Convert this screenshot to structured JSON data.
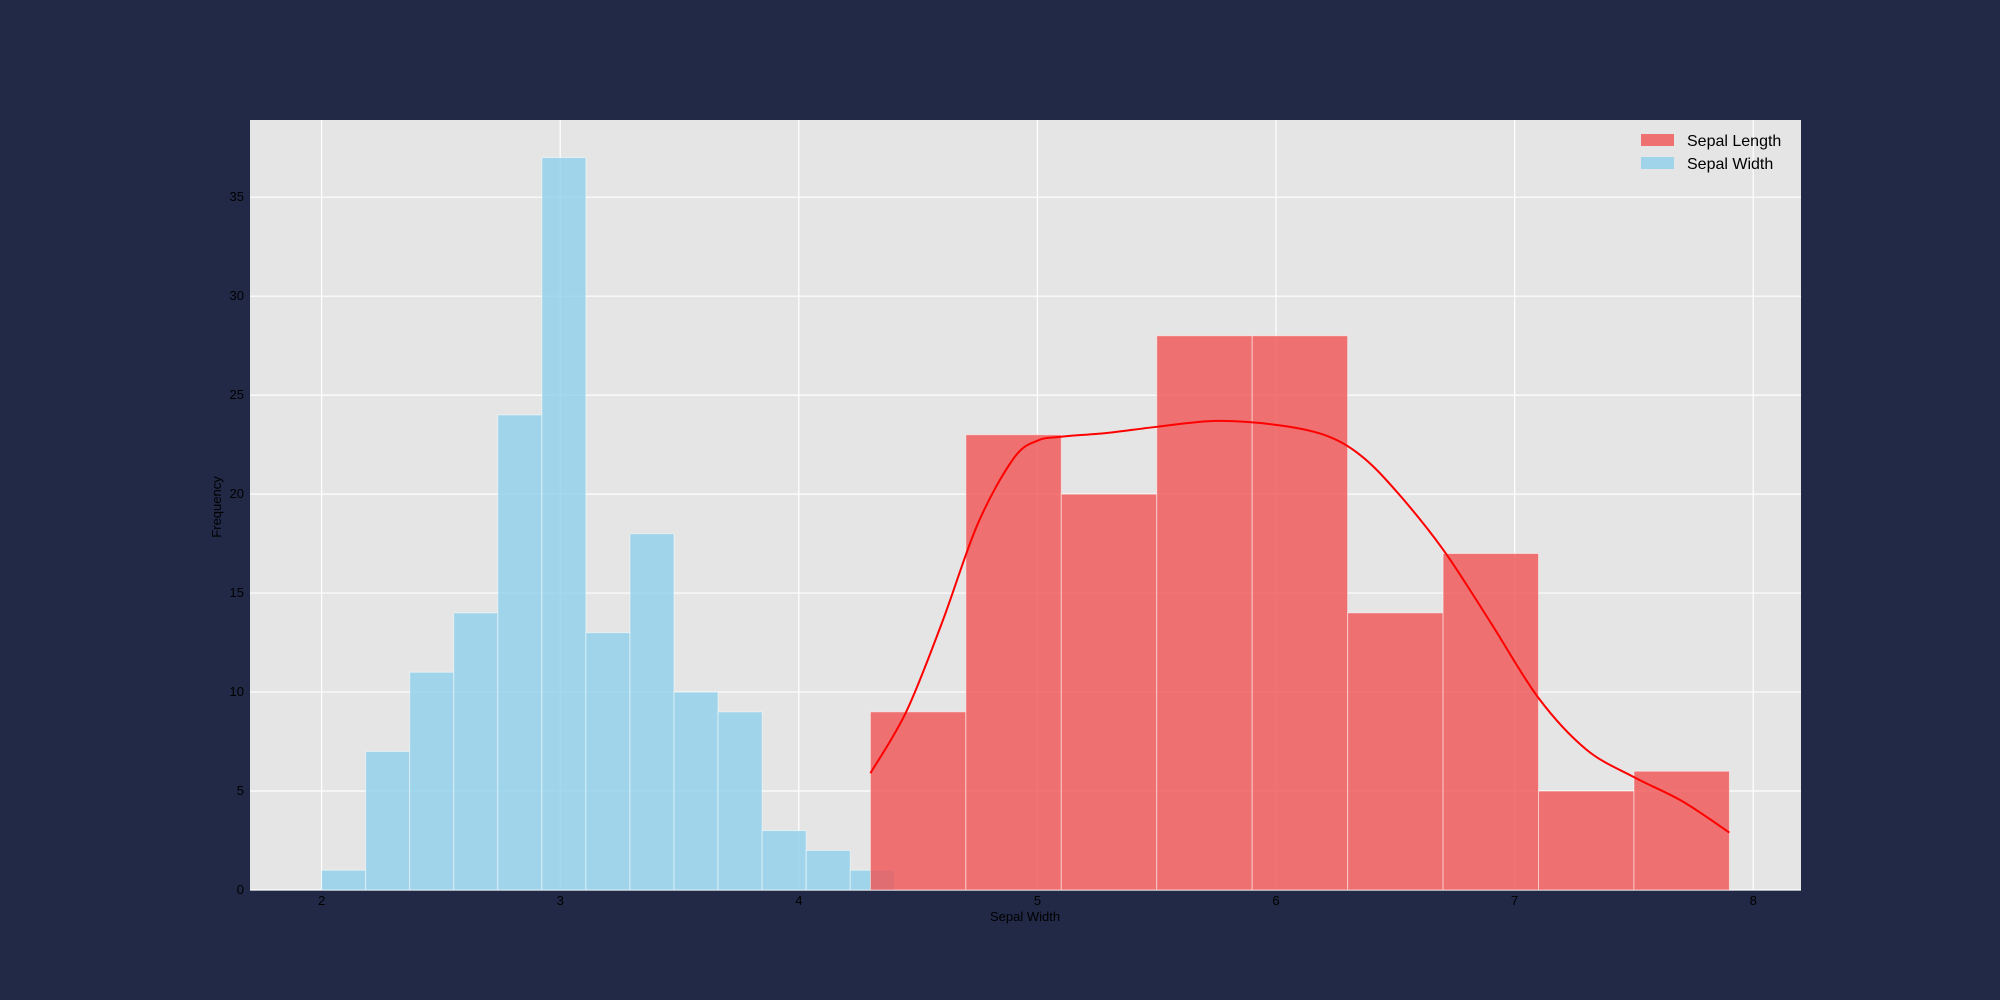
{
  "chart_data": {
    "type": "bar",
    "title": "",
    "xlabel": "Sepal Width",
    "ylabel": "Frequency",
    "xlim": [
      1.7,
      8.2
    ],
    "ylim": [
      0,
      38.9
    ],
    "x_ticks": [
      2,
      3,
      4,
      5,
      6,
      7,
      8
    ],
    "y_ticks": [
      0,
      5,
      10,
      15,
      20,
      25,
      30,
      35
    ],
    "grid": true,
    "legend_position": "top-right",
    "series": [
      {
        "name": "Sepal Length",
        "type": "histogram",
        "color": "#f05252",
        "bin_edges": [
          4.3,
          4.7,
          5.1,
          5.5,
          5.9,
          6.3,
          6.7,
          7.1,
          7.5,
          7.9
        ],
        "counts": [
          9,
          23,
          20,
          28,
          28,
          14,
          17,
          5,
          6
        ]
      },
      {
        "name": "Sepal Width",
        "type": "histogram",
        "color": "#87ceeb",
        "bin_edges": [
          2.0,
          2.1846,
          2.3692,
          2.5538,
          2.7385,
          2.9231,
          3.1077,
          3.2923,
          3.4769,
          3.6615,
          3.8462,
          4.0308,
          4.2154,
          4.4
        ],
        "counts": [
          1,
          7,
          11,
          14,
          24,
          37,
          13,
          18,
          10,
          9,
          3,
          2,
          1
        ]
      }
    ],
    "kde": {
      "series": "Sepal Length",
      "color": "#ff0000",
      "points": [
        [
          4.3,
          5.9
        ],
        [
          4.45,
          9.0
        ],
        [
          4.6,
          13.5
        ],
        [
          4.75,
          18.5
        ],
        [
          4.9,
          21.8
        ],
        [
          5.0,
          22.7
        ],
        [
          5.1,
          22.9
        ],
        [
          5.3,
          23.1
        ],
        [
          5.5,
          23.4
        ],
        [
          5.75,
          23.7
        ],
        [
          6.0,
          23.5
        ],
        [
          6.2,
          23.0
        ],
        [
          6.35,
          22.0
        ],
        [
          6.5,
          20.2
        ],
        [
          6.7,
          17.2
        ],
        [
          6.9,
          13.5
        ],
        [
          7.1,
          9.7
        ],
        [
          7.3,
          7.1
        ],
        [
          7.5,
          5.7
        ],
        [
          7.7,
          4.5
        ],
        [
          7.9,
          2.9
        ]
      ]
    }
  }
}
